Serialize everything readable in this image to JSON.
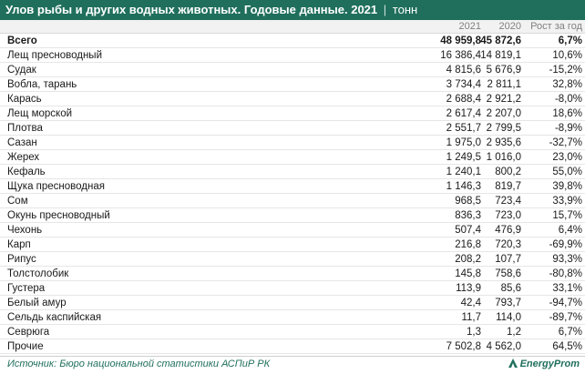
{
  "header": {
    "title": "Улов рыбы и других водных животных. Годовые данные. 2021",
    "separator": "|",
    "unit": "тонн"
  },
  "columns": {
    "y2021": "2021",
    "y2020": "2020",
    "growth": "Рост за год"
  },
  "rows": [
    {
      "name": "Всего",
      "v2021": "48 959,8",
      "v2020": "45 872,6",
      "growth": "6,7%"
    },
    {
      "name": "Лещ пресноводный",
      "v2021": "16 386,4",
      "v2020": "14 819,1",
      "growth": "10,6%"
    },
    {
      "name": "Судак",
      "v2021": "4 815,6",
      "v2020": "5 676,9",
      "growth": "-15,2%"
    },
    {
      "name": "Вобла, тарань",
      "v2021": "3 734,4",
      "v2020": "2 811,1",
      "growth": "32,8%"
    },
    {
      "name": "Карась",
      "v2021": "2 688,4",
      "v2020": "2 921,2",
      "growth": "-8,0%"
    },
    {
      "name": "Лещ морской",
      "v2021": "2 617,4",
      "v2020": "2 207,0",
      "growth": "18,6%"
    },
    {
      "name": "Плотва",
      "v2021": "2 551,7",
      "v2020": "2 799,5",
      "growth": "-8,9%"
    },
    {
      "name": "Сазан",
      "v2021": "1 975,0",
      "v2020": "2 935,6",
      "growth": "-32,7%"
    },
    {
      "name": "Жерех",
      "v2021": "1 249,5",
      "v2020": "1 016,0",
      "growth": "23,0%"
    },
    {
      "name": "Кефаль",
      "v2021": "1 240,1",
      "v2020": "800,2",
      "growth": "55,0%"
    },
    {
      "name": "Щука пресноводная",
      "v2021": "1 146,3",
      "v2020": "819,7",
      "growth": "39,8%"
    },
    {
      "name": "Сом",
      "v2021": "968,5",
      "v2020": "723,4",
      "growth": "33,9%"
    },
    {
      "name": "Окунь пресноводный",
      "v2021": "836,3",
      "v2020": "723,0",
      "growth": "15,7%"
    },
    {
      "name": "Чехонь",
      "v2021": "507,4",
      "v2020": "476,9",
      "growth": "6,4%"
    },
    {
      "name": "Карп",
      "v2021": "216,8",
      "v2020": "720,3",
      "growth": "-69,9%"
    },
    {
      "name": "Рипус",
      "v2021": "208,2",
      "v2020": "107,7",
      "growth": "93,3%"
    },
    {
      "name": "Толстолобик",
      "v2021": "145,8",
      "v2020": "758,6",
      "growth": "-80,8%"
    },
    {
      "name": "Густера",
      "v2021": "113,9",
      "v2020": "85,6",
      "growth": "33,1%"
    },
    {
      "name": "Белый амур",
      "v2021": "42,4",
      "v2020": "793,7",
      "growth": "-94,7%"
    },
    {
      "name": "Сельдь каспийская",
      "v2021": "11,7",
      "v2020": "114,0",
      "growth": "-89,7%"
    },
    {
      "name": "Севрюга",
      "v2021": "1,3",
      "v2020": "1,2",
      "growth": "6,7%"
    },
    {
      "name": "Прочие",
      "v2021": "7 502,8",
      "v2020": "4 562,0",
      "growth": "64,5%"
    }
  ],
  "footer": {
    "source": "Источник: Бюро национальной статистики АСПиР РК",
    "brand": "EnergyProm",
    "brand_icon": "energyprom-logo-icon"
  },
  "colors": {
    "header_bg": "#1f6f5c",
    "accent": "#1f6f5c"
  }
}
